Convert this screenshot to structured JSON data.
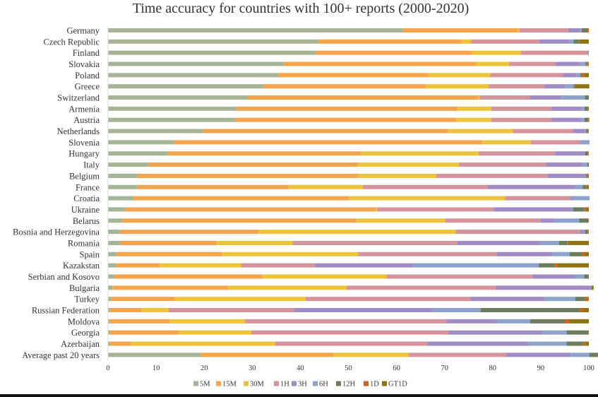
{
  "chart_data": {
    "type": "bar",
    "orientation": "horizontal",
    "stacked": true,
    "title": "Time accuracy for countries with 100+ reports (2000-2020)",
    "xlim": [
      0,
      100
    ],
    "xticks": [
      "0",
      "10",
      "20",
      "30",
      "40",
      "50",
      "60",
      "70",
      "80",
      "90",
      "100"
    ],
    "grid": false,
    "legend_position": "bottom",
    "categories": [
      "Germany",
      "Czech Republic",
      "Finland",
      "Slovakia",
      "Poland",
      "Greece",
      "Switzerland",
      "Armenia",
      "Austria",
      "Netherlands",
      "Slovenia",
      "Hungary",
      "Italy",
      "Belgium",
      "France",
      "Croatia",
      "Ukraine",
      "Belarus",
      "Bosnia and Herzegovina",
      "Romania",
      "Spain",
      "Kazakstan",
      "Serbian and Kosovo",
      "Bulgaria",
      "Turkey",
      "Russian Federation",
      "Moldova",
      "Georgia",
      "Azerbaijan",
      "Average past 20 years"
    ],
    "series": [
      {
        "name": "5M",
        "color": "#a4b494",
        "values": [
          61.3,
          43.7,
          43.3,
          36.6,
          35.4,
          32.3,
          29.0,
          26.7,
          26.5,
          19.8,
          13.7,
          12.3,
          8.3,
          6.0,
          6.0,
          5.2,
          3.5,
          3.0,
          2.5,
          2.5,
          1.8,
          1.6,
          1.3,
          0.9,
          0.6,
          0.4,
          0.3,
          0.3,
          0.3,
          19.2
        ]
      },
      {
        "name": "15M",
        "color": "#f4a44c",
        "values": [
          24.0,
          29.8,
          32.4,
          39.9,
          31.2,
          33.7,
          48.0,
          45.9,
          45.9,
          50.9,
          64.1,
          40.2,
          43.7,
          46.1,
          31.6,
          44.9,
          52.2,
          48.7,
          28.8,
          20.1,
          21.9,
          9.1,
          30.8,
          24.0,
          13.2,
          6.6,
          12.5,
          14.5,
          4.4,
          27.7
        ]
      },
      {
        "name": "30M",
        "color": "#ecc43c",
        "values": [
          0.3,
          2.0,
          10.1,
          6.9,
          12.9,
          13.2,
          0.3,
          7.1,
          7.3,
          13.5,
          10.1,
          24.6,
          21.0,
          16.2,
          15.4,
          32.5,
          0.3,
          18.4,
          41.0,
          15.8,
          28.3,
          17.0,
          25.8,
          24.7,
          27.3,
          5.6,
          15.7,
          15.0,
          30.0,
          15.6
        ]
      },
      {
        "name": "1H",
        "color": "#d4949c",
        "values": [
          10.1,
          14.2,
          13.9,
          9.6,
          15.1,
          11.5,
          10.4,
          12.5,
          12.5,
          12.5,
          10.2,
          15.8,
          18.1,
          23.1,
          25.9,
          13.5,
          24.2,
          19.8,
          25.8,
          34.3,
          28.8,
          15.3,
          30.4,
          31.0,
          34.3,
          26.1,
          41.9,
          41.0,
          31.7,
          20.3
        ]
      },
      {
        "name": "3H",
        "color": "#a08cc4",
        "values": [
          2.5,
          6.2,
          0.1,
          5.2,
          2.8,
          4.4,
          6.6,
          6.3,
          6.3,
          2.6,
          0.2,
          6.2,
          7.5,
          7.8,
          18.3,
          0.5,
          16.2,
          3.0,
          1.0,
          17.3,
          11.6,
          20.5,
          8.9,
          19.8,
          15.4,
          28.8,
          10.5,
          19.6,
          21.0,
          13.4
        ]
      },
      {
        "name": "6H",
        "color": "#8ca4cc",
        "values": [
          0.3,
          0.9,
          0.1,
          1.1,
          0.8,
          1.7,
          4.9,
          0.6,
          0.6,
          0.1,
          1.7,
          0.1,
          1.1,
          0.2,
          1.5,
          3.4,
          0.3,
          5.1,
          0.1,
          3.8,
          3.6,
          26.1,
          1.8,
          0.1,
          6.4,
          10.0,
          6.9,
          5.0,
          8.0,
          3.9
        ]
      },
      {
        "name": "12H",
        "color": "#6c7c5c",
        "values": [
          1.2,
          1.1,
          0.1,
          0.3,
          0.3,
          0.2,
          0.8,
          0.7,
          0.8,
          0.4,
          0.1,
          0.6,
          0.3,
          0.2,
          0.7,
          0.1,
          2.3,
          1.9,
          0.6,
          1.7,
          2.6,
          3.3,
          1.0,
          0.1,
          2.0,
          20.6,
          7.2,
          4.5,
          3.4,
          2.7
        ]
      },
      {
        "name": "1D",
        "color": "#c8641c",
        "values": [
          0.3,
          0.1,
          0.0,
          0.3,
          0.5,
          0.1,
          0.0,
          0.2,
          0.2,
          0.1,
          0.0,
          0.1,
          0.0,
          0.3,
          0.2,
          0.0,
          0.4,
          0.1,
          0.1,
          0.2,
          0.6,
          0.6,
          0.0,
          0.0,
          0.7,
          0.8,
          0.8,
          0.1,
          0.5,
          0.4
        ]
      },
      {
        "name": "GT1D",
        "color": "#8c7414",
        "values": [
          0.0,
          2.0,
          0.0,
          0.1,
          1.0,
          3.0,
          0.0,
          0.0,
          0.0,
          0.1,
          0.0,
          0.1,
          0.0,
          0.1,
          0.4,
          0.0,
          0.6,
          0.0,
          0.1,
          4.3,
          0.8,
          6.5,
          0.0,
          0.4,
          0.1,
          1.1,
          4.2,
          0.0,
          0.7,
          0.8
        ]
      }
    ]
  }
}
